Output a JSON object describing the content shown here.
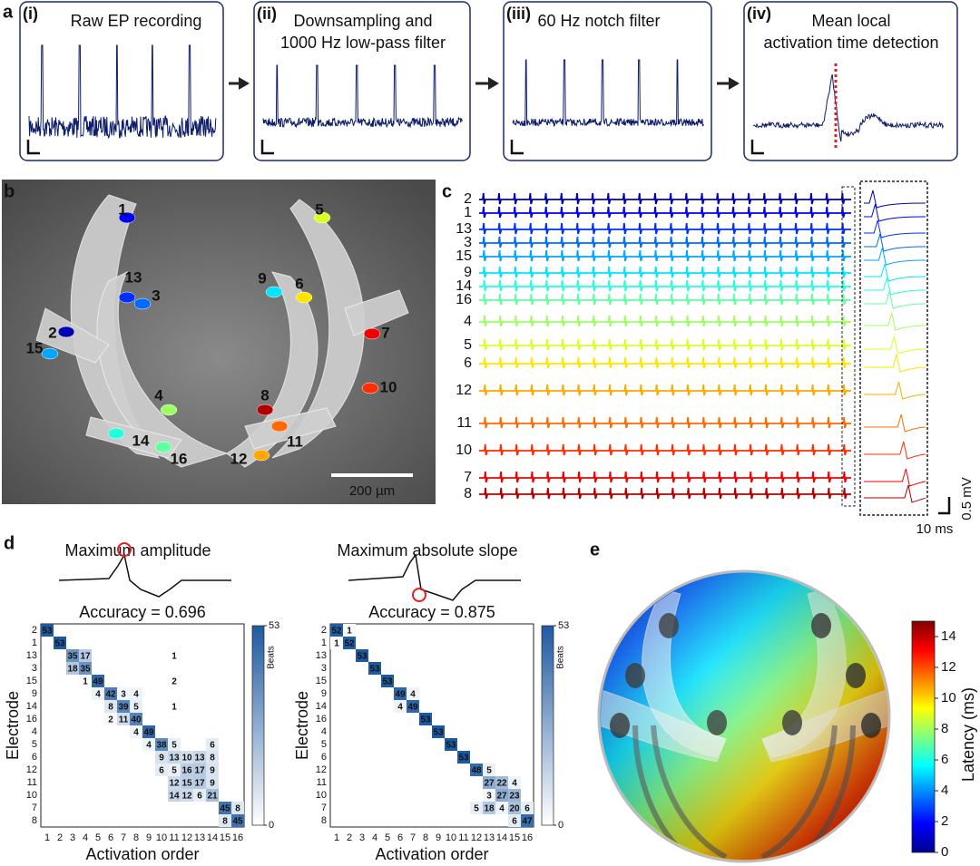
{
  "panel_a": {
    "label": "a",
    "steps": [
      {
        "number": "(i)",
        "title": [
          "Raw EP recording"
        ]
      },
      {
        "number": "(ii)",
        "title": [
          "Downsampling and",
          "1000 Hz low-pass filter"
        ]
      },
      {
        "number": "(iii)",
        "title": [
          "60 Hz notch filter"
        ]
      },
      {
        "number": "(iv)",
        "title": [
          "Mean local",
          "activation time detection"
        ]
      }
    ]
  },
  "panel_b": {
    "label": "b",
    "electrodes": [
      1,
      2,
      3,
      4,
      5,
      6,
      7,
      8,
      9,
      10,
      11,
      12,
      13,
      14,
      15,
      16
    ],
    "scale_bar": "200 µm"
  },
  "panel_c": {
    "label": "c",
    "electrode_order": [
      2,
      1,
      13,
      3,
      15,
      9,
      14,
      16,
      4,
      5,
      6,
      12,
      11,
      10,
      7,
      8
    ],
    "scale_voltage": "0.5 mV",
    "scale_time": "10 ms"
  },
  "panel_d": {
    "label": "d",
    "row_labels": [
      2,
      1,
      13,
      3,
      15,
      9,
      14,
      16,
      4,
      5,
      6,
      12,
      11,
      10,
      7,
      8
    ],
    "col_labels": [
      1,
      2,
      3,
      4,
      5,
      6,
      7,
      8,
      9,
      10,
      11,
      12,
      13,
      14,
      15,
      16
    ],
    "y_label": "Electrode",
    "x_label": "Activation order",
    "colorbar": {
      "label": "Beats",
      "clim": [
        0,
        53
      ],
      "ticks": [
        0,
        53
      ]
    },
    "matrices": [
      {
        "method": "Maximum amplitude",
        "accuracy": "Accuracy = 0.696",
        "cells": [
          [
            53,
            null,
            null,
            null,
            null,
            null,
            null,
            null,
            null,
            null,
            null,
            null,
            null,
            null,
            null,
            null
          ],
          [
            null,
            53,
            null,
            null,
            null,
            null,
            null,
            null,
            null,
            null,
            null,
            null,
            null,
            null,
            null,
            null
          ],
          [
            null,
            null,
            35,
            17,
            null,
            null,
            null,
            null,
            null,
            null,
            1,
            null,
            null,
            null,
            null,
            null
          ],
          [
            null,
            null,
            18,
            35,
            null,
            null,
            null,
            null,
            null,
            null,
            null,
            null,
            null,
            null,
            null,
            null
          ],
          [
            null,
            null,
            null,
            1,
            49,
            null,
            null,
            null,
            null,
            null,
            2,
            null,
            null,
            null,
            null,
            null
          ],
          [
            null,
            null,
            null,
            null,
            4,
            42,
            3,
            4,
            null,
            null,
            null,
            null,
            null,
            null,
            null,
            null
          ],
          [
            null,
            null,
            null,
            null,
            null,
            8,
            39,
            5,
            null,
            null,
            1,
            null,
            null,
            null,
            null,
            null
          ],
          [
            null,
            null,
            null,
            null,
            null,
            2,
            11,
            40,
            null,
            null,
            null,
            null,
            null,
            null,
            null,
            null
          ],
          [
            null,
            null,
            null,
            null,
            null,
            null,
            null,
            4,
            49,
            null,
            null,
            null,
            null,
            null,
            null,
            null
          ],
          [
            null,
            null,
            null,
            null,
            null,
            null,
            null,
            null,
            4,
            38,
            5,
            null,
            null,
            6,
            null,
            null
          ],
          [
            null,
            null,
            null,
            null,
            null,
            null,
            null,
            null,
            null,
            9,
            13,
            10,
            13,
            8,
            null,
            null
          ],
          [
            null,
            null,
            null,
            null,
            null,
            null,
            null,
            null,
            null,
            6,
            5,
            16,
            17,
            9,
            null,
            null
          ],
          [
            null,
            null,
            null,
            null,
            null,
            null,
            null,
            null,
            null,
            null,
            12,
            15,
            17,
            9,
            null,
            null
          ],
          [
            null,
            null,
            null,
            null,
            null,
            null,
            null,
            null,
            null,
            null,
            14,
            12,
            6,
            21,
            null,
            null
          ],
          [
            null,
            null,
            null,
            null,
            null,
            null,
            null,
            null,
            null,
            null,
            null,
            null,
            null,
            null,
            45,
            8
          ],
          [
            null,
            null,
            null,
            null,
            null,
            null,
            null,
            null,
            null,
            null,
            null,
            null,
            null,
            null,
            8,
            45
          ]
        ]
      },
      {
        "method": "Maximum absolute slope",
        "accuracy": "Accuracy = 0.875",
        "cells": [
          [
            52,
            1,
            null,
            null,
            null,
            null,
            null,
            null,
            null,
            null,
            null,
            null,
            null,
            null,
            null,
            null
          ],
          [
            1,
            52,
            null,
            null,
            null,
            null,
            null,
            null,
            null,
            null,
            null,
            null,
            null,
            null,
            null,
            null
          ],
          [
            null,
            null,
            53,
            null,
            null,
            null,
            null,
            null,
            null,
            null,
            null,
            null,
            null,
            null,
            null,
            null
          ],
          [
            null,
            null,
            null,
            53,
            null,
            null,
            null,
            null,
            null,
            null,
            null,
            null,
            null,
            null,
            null,
            null
          ],
          [
            null,
            null,
            null,
            null,
            53,
            null,
            null,
            null,
            null,
            null,
            null,
            null,
            null,
            null,
            null,
            null
          ],
          [
            null,
            null,
            null,
            null,
            null,
            49,
            4,
            null,
            null,
            null,
            null,
            null,
            null,
            null,
            null,
            null
          ],
          [
            null,
            null,
            null,
            null,
            null,
            4,
            49,
            null,
            null,
            null,
            null,
            null,
            null,
            null,
            null,
            null
          ],
          [
            null,
            null,
            null,
            null,
            null,
            null,
            null,
            53,
            null,
            null,
            null,
            null,
            null,
            null,
            null,
            null
          ],
          [
            null,
            null,
            null,
            null,
            null,
            null,
            null,
            null,
            53,
            null,
            null,
            null,
            null,
            null,
            null,
            null
          ],
          [
            null,
            null,
            null,
            null,
            null,
            null,
            null,
            null,
            null,
            53,
            null,
            null,
            null,
            null,
            null,
            null
          ],
          [
            null,
            null,
            null,
            null,
            null,
            null,
            null,
            null,
            null,
            null,
            53,
            null,
            null,
            null,
            null,
            null
          ],
          [
            null,
            null,
            null,
            null,
            null,
            null,
            null,
            null,
            null,
            null,
            null,
            48,
            5,
            null,
            null,
            null
          ],
          [
            null,
            null,
            null,
            null,
            null,
            null,
            null,
            null,
            null,
            null,
            null,
            null,
            27,
            22,
            4,
            null
          ],
          [
            null,
            null,
            null,
            null,
            null,
            null,
            null,
            null,
            null,
            null,
            null,
            null,
            3,
            27,
            23,
            null
          ],
          [
            null,
            null,
            null,
            null,
            null,
            null,
            null,
            null,
            null,
            null,
            null,
            5,
            18,
            4,
            20,
            6
          ],
          [
            null,
            null,
            null,
            null,
            null,
            null,
            null,
            null,
            null,
            null,
            null,
            null,
            null,
            null,
            6,
            47
          ]
        ]
      }
    ]
  },
  "panel_e": {
    "label": "e",
    "colorbar": {
      "label": "Latency (ms)",
      "clim": [
        0,
        15
      ],
      "ticks": [
        0,
        2,
        4,
        6,
        8,
        10,
        12,
        14
      ]
    }
  }
}
